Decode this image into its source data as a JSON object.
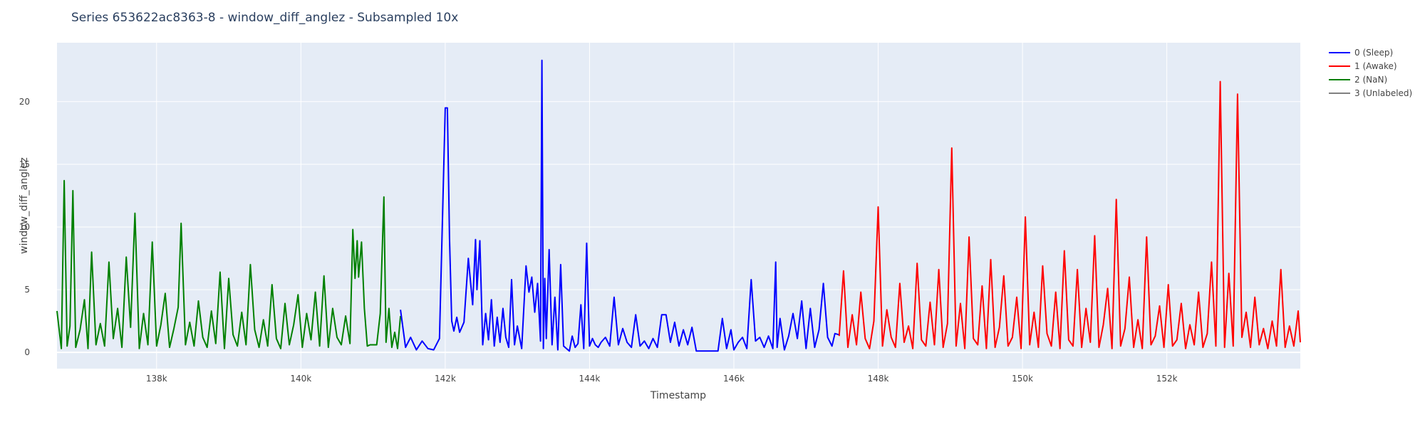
{
  "chart_data": {
    "type": "line",
    "title": "Series 653622ac8363-8 - window_diff_anglez - Subsampled 10x",
    "xlabel": "Timestamp",
    "ylabel": "window_diff_anglez",
    "xlim": [
      136620,
      153850
    ],
    "ylim": [
      -1.3,
      24.7
    ],
    "x_ticks": [
      138000,
      140000,
      142000,
      144000,
      146000,
      148000,
      150000,
      152000
    ],
    "x_tick_labels": [
      "138k",
      "140k",
      "142k",
      "144k",
      "146k",
      "148k",
      "150k",
      "152k"
    ],
    "y_ticks": [
      0,
      5,
      10,
      15,
      20
    ],
    "y_tick_labels": [
      "0",
      "5",
      "10",
      "15",
      "20"
    ],
    "grid": true,
    "legend_position": "top-right",
    "legend": [
      {
        "name": "0 (Sleep)",
        "color": "#0000ff"
      },
      {
        "name": "1 (Awake)",
        "color": "#ff0000"
      },
      {
        "name": "2 (NaN)",
        "color": "#008000"
      },
      {
        "name": "3 (Unlabeled)",
        "color": "#808080"
      }
    ],
    "series": [
      {
        "name": "2 (NaN)",
        "color": "#008000",
        "x": [
          136620,
          136680,
          136720,
          136760,
          136800,
          136840,
          136880,
          136940,
          137000,
          137050,
          137100,
          137160,
          137220,
          137280,
          137340,
          137400,
          137460,
          137520,
          137580,
          137640,
          137700,
          137760,
          137820,
          137880,
          137940,
          138000,
          138060,
          138120,
          138180,
          138240,
          138300,
          138340,
          138400,
          138460,
          138520,
          138580,
          138640,
          138700,
          138760,
          138820,
          138880,
          138940,
          139000,
          139060,
          139120,
          139180,
          139240,
          139300,
          139360,
          139420,
          139480,
          139540,
          139600,
          139660,
          139720,
          139780,
          139840,
          139900,
          139960,
          140020,
          140080,
          140140,
          140200,
          140260,
          140320,
          140380,
          140440,
          140500,
          140560,
          140620,
          140680,
          140720,
          140750,
          140780,
          140800,
          140840,
          140880,
          140920,
          140960,
          141000,
          141050,
          141100,
          141150,
          141180,
          141220,
          141260,
          141300,
          141340,
          141380
        ],
        "values": [
          3.3,
          0.3,
          13.7,
          0.5,
          2.1,
          12.9,
          0.4,
          1.8,
          4.2,
          0.3,
          8.0,
          0.6,
          2.3,
          0.5,
          7.2,
          1.1,
          3.5,
          0.4,
          7.6,
          2.0,
          11.1,
          0.3,
          3.1,
          0.6,
          8.8,
          0.5,
          2.2,
          4.7,
          0.4,
          1.9,
          3.6,
          10.3,
          0.6,
          2.4,
          0.5,
          4.1,
          1.2,
          0.4,
          3.3,
          0.7,
          6.4,
          0.3,
          5.9,
          1.4,
          0.5,
          3.2,
          0.6,
          7.0,
          1.8,
          0.4,
          2.6,
          0.5,
          5.4,
          1.1,
          0.3,
          3.9,
          0.6,
          2.2,
          4.6,
          0.4,
          3.1,
          1.0,
          4.8,
          0.5,
          6.1,
          0.4,
          3.5,
          1.2,
          0.6,
          2.9,
          0.7,
          9.8,
          5.9,
          8.9,
          6.0,
          8.8,
          3.5,
          0.5,
          0.6,
          0.6,
          0.6,
          3.1,
          12.4,
          0.8,
          3.5,
          0.4,
          1.6,
          0.3,
          2.9
        ]
      },
      {
        "name": "0 (Sleep)",
        "color": "#0000ff",
        "x": [
          141380,
          141450,
          141520,
          141600,
          141680,
          141760,
          141840,
          141920,
          142000,
          142030,
          142060,
          142090,
          142120,
          142160,
          142200,
          142260,
          142320,
          142380,
          142420,
          142440,
          142480,
          142520,
          142560,
          142600,
          142640,
          142680,
          142720,
          142760,
          142800,
          142840,
          142880,
          142920,
          142960,
          143000,
          143060,
          143120,
          143160,
          143200,
          143240,
          143280,
          143320,
          143340,
          143360,
          143380,
          143400,
          143440,
          143480,
          143520,
          143560,
          143600,
          143640,
          143680,
          143720,
          143760,
          143800,
          143840,
          143880,
          143920,
          143960,
          144000,
          144040,
          144080,
          144120,
          144160,
          144220,
          144280,
          144340,
          144400,
          144460,
          144520,
          144580,
          144640,
          144700,
          144760,
          144820,
          144880,
          144940,
          145000,
          145060,
          145120,
          145180,
          145240,
          145300,
          145360,
          145420,
          145480,
          145540,
          145600,
          145660,
          145720,
          145780,
          145840,
          145900,
          145960,
          146000,
          146060,
          146120,
          146180,
          146240,
          146300,
          146360,
          146420,
          146480,
          146540,
          146580,
          146600,
          146640,
          146700,
          146760,
          146820,
          146880,
          146940,
          147000,
          147060,
          147120,
          147180,
          147240,
          147300,
          147360,
          147400,
          147460
        ],
        "values": [
          3.4,
          0.4,
          1.2,
          0.2,
          0.9,
          0.3,
          0.2,
          1.1,
          19.5,
          19.5,
          9.1,
          2.5,
          1.7,
          2.8,
          1.6,
          2.4,
          7.5,
          3.8,
          9.0,
          5.0,
          8.9,
          0.6,
          3.1,
          1.0,
          4.2,
          0.5,
          2.8,
          0.8,
          3.5,
          1.2,
          0.4,
          5.8,
          0.6,
          2.1,
          0.3,
          6.9,
          4.8,
          6.0,
          3.2,
          5.5,
          0.9,
          23.3,
          0.3,
          5.9,
          1.1,
          8.2,
          0.6,
          4.4,
          0.2,
          7.0,
          0.5,
          0.3,
          0.1,
          1.3,
          0.4,
          0.7,
          3.8,
          0.3,
          8.7,
          0.5,
          1.1,
          0.6,
          0.4,
          0.8,
          1.2,
          0.5,
          4.4,
          0.6,
          1.9,
          0.8,
          0.4,
          3.0,
          0.5,
          0.9,
          0.3,
          1.1,
          0.4,
          3.0,
          3.0,
          0.8,
          2.4,
          0.5,
          1.8,
          0.6,
          2.0,
          0.1,
          0.1,
          0.1,
          0.1,
          0.1,
          0.1,
          2.7,
          0.3,
          1.8,
          0.2,
          0.8,
          1.2,
          0.3,
          5.8,
          0.9,
          1.2,
          0.4,
          1.3,
          0.3,
          7.2,
          0.4,
          2.7,
          0.2,
          1.3,
          3.1,
          1.1,
          4.1,
          0.3,
          3.5,
          0.4,
          1.8,
          5.5,
          1.2,
          0.5,
          1.5,
          1.4
        ]
      },
      {
        "name": "1 (Awake)",
        "color": "#ff0000",
        "x": [
          147460,
          147520,
          147580,
          147640,
          147700,
          147760,
          147820,
          147880,
          147940,
          148000,
          148060,
          148120,
          148180,
          148240,
          148300,
          148360,
          148420,
          148480,
          148540,
          148600,
          148660,
          148720,
          148780,
          148840,
          148900,
          148960,
          149020,
          149080,
          149140,
          149200,
          149260,
          149320,
          149380,
          149440,
          149500,
          149560,
          149620,
          149680,
          149740,
          149800,
          149860,
          149920,
          149980,
          150040,
          150100,
          150160,
          150220,
          150280,
          150340,
          150400,
          150460,
          150520,
          150580,
          150640,
          150700,
          150760,
          150820,
          150880,
          150940,
          151000,
          151060,
          151120,
          151180,
          151240,
          151300,
          151360,
          151420,
          151480,
          151540,
          151600,
          151660,
          151720,
          151780,
          151840,
          151900,
          151960,
          152020,
          152080,
          152140,
          152200,
          152260,
          152320,
          152380,
          152440,
          152500,
          152560,
          152620,
          152680,
          152740,
          152800,
          152860,
          152920,
          152980,
          153040,
          153100,
          153160,
          153220,
          153280,
          153340,
          153400,
          153460,
          153520,
          153580,
          153640,
          153700,
          153760,
          153820,
          153850
        ],
        "values": [
          1.3,
          6.5,
          0.4,
          3.0,
          0.6,
          4.8,
          1.1,
          0.3,
          2.5,
          11.6,
          0.5,
          3.4,
          1.2,
          0.4,
          5.5,
          0.8,
          2.1,
          0.3,
          7.1,
          1.0,
          0.5,
          4.0,
          0.6,
          6.6,
          0.4,
          2.3,
          16.3,
          0.5,
          3.9,
          0.3,
          9.2,
          1.1,
          0.6,
          5.3,
          0.3,
          7.4,
          0.4,
          2.0,
          6.1,
          0.5,
          1.2,
          4.4,
          0.3,
          10.8,
          0.6,
          3.2,
          0.4,
          6.9,
          1.5,
          0.5,
          4.8,
          0.3,
          8.1,
          1.0,
          0.5,
          6.6,
          0.4,
          3.5,
          0.8,
          9.3,
          0.4,
          2.2,
          5.1,
          0.3,
          12.2,
          0.5,
          1.9,
          6.0,
          0.4,
          2.6,
          0.3,
          9.2,
          0.6,
          1.3,
          3.7,
          0.4,
          5.4,
          0.5,
          1.0,
          3.9,
          0.3,
          2.2,
          0.6,
          4.8,
          0.4,
          1.5,
          7.2,
          0.5,
          21.6,
          0.4,
          6.3,
          0.5,
          20.6,
          1.2,
          3.2,
          0.4,
          4.4,
          0.6,
          1.9,
          0.3,
          2.5,
          0.5,
          6.6,
          0.4,
          2.1,
          0.5,
          3.3,
          0.8
        ]
      }
    ]
  }
}
